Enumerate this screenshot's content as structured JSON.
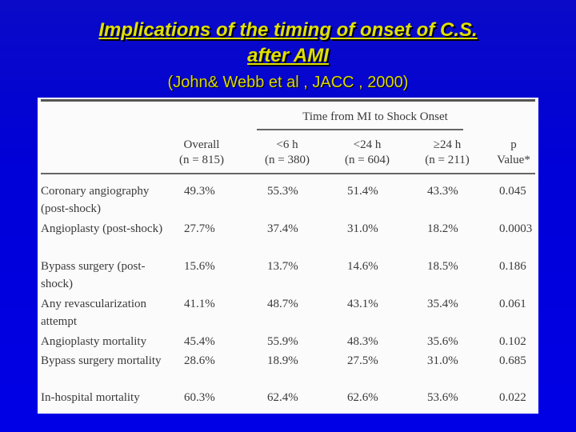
{
  "slide": {
    "title_line1": "Implications of the timing of onset of C.S.",
    "title_line2": "after AMI",
    "subtitle": "(John& Webb et al , JACC , 2000)"
  },
  "table": {
    "group_header": "Time from MI to Shock Onset",
    "columns": [
      {
        "label": "Overall",
        "sub": "(n = 815)"
      },
      {
        "label": "<6 h",
        "sub": "(n = 380)"
      },
      {
        "label": "<24 h",
        "sub": "(n = 604)"
      },
      {
        "label": "≥24 h",
        "sub": "(n = 211)"
      },
      {
        "label": "p",
        "sub": "Value*"
      }
    ],
    "rows": [
      {
        "label": "Coronary angiography (post-shock)",
        "values": [
          "49.3%",
          "55.3%",
          "51.4%",
          "43.3%",
          "0.045"
        ]
      },
      {
        "label": "Angioplasty (post-shock)",
        "values": [
          "27.7%",
          "37.4%",
          "31.0%",
          "18.2%",
          "0.0003"
        ]
      },
      {
        "label": "Bypass surgery (post-shock)",
        "values": [
          "15.6%",
          "13.7%",
          "14.6%",
          "18.5%",
          "0.186"
        ]
      },
      {
        "label": "Any revascularization attempt",
        "values": [
          "41.1%",
          "48.7%",
          "43.1%",
          "35.4%",
          "0.061"
        ]
      },
      {
        "label": "Angioplasty mortality",
        "values": [
          "45.4%",
          "55.9%",
          "48.3%",
          "35.6%",
          "0.102"
        ]
      },
      {
        "label": "Bypass surgery mortality",
        "values": [
          "28.6%",
          "18.9%",
          "27.5%",
          "31.0%",
          "0.685"
        ]
      },
      {
        "label": "In-hospital mortality",
        "values": [
          "60.3%",
          "62.4%",
          "62.6%",
          "53.6%",
          "0.022"
        ]
      }
    ]
  }
}
